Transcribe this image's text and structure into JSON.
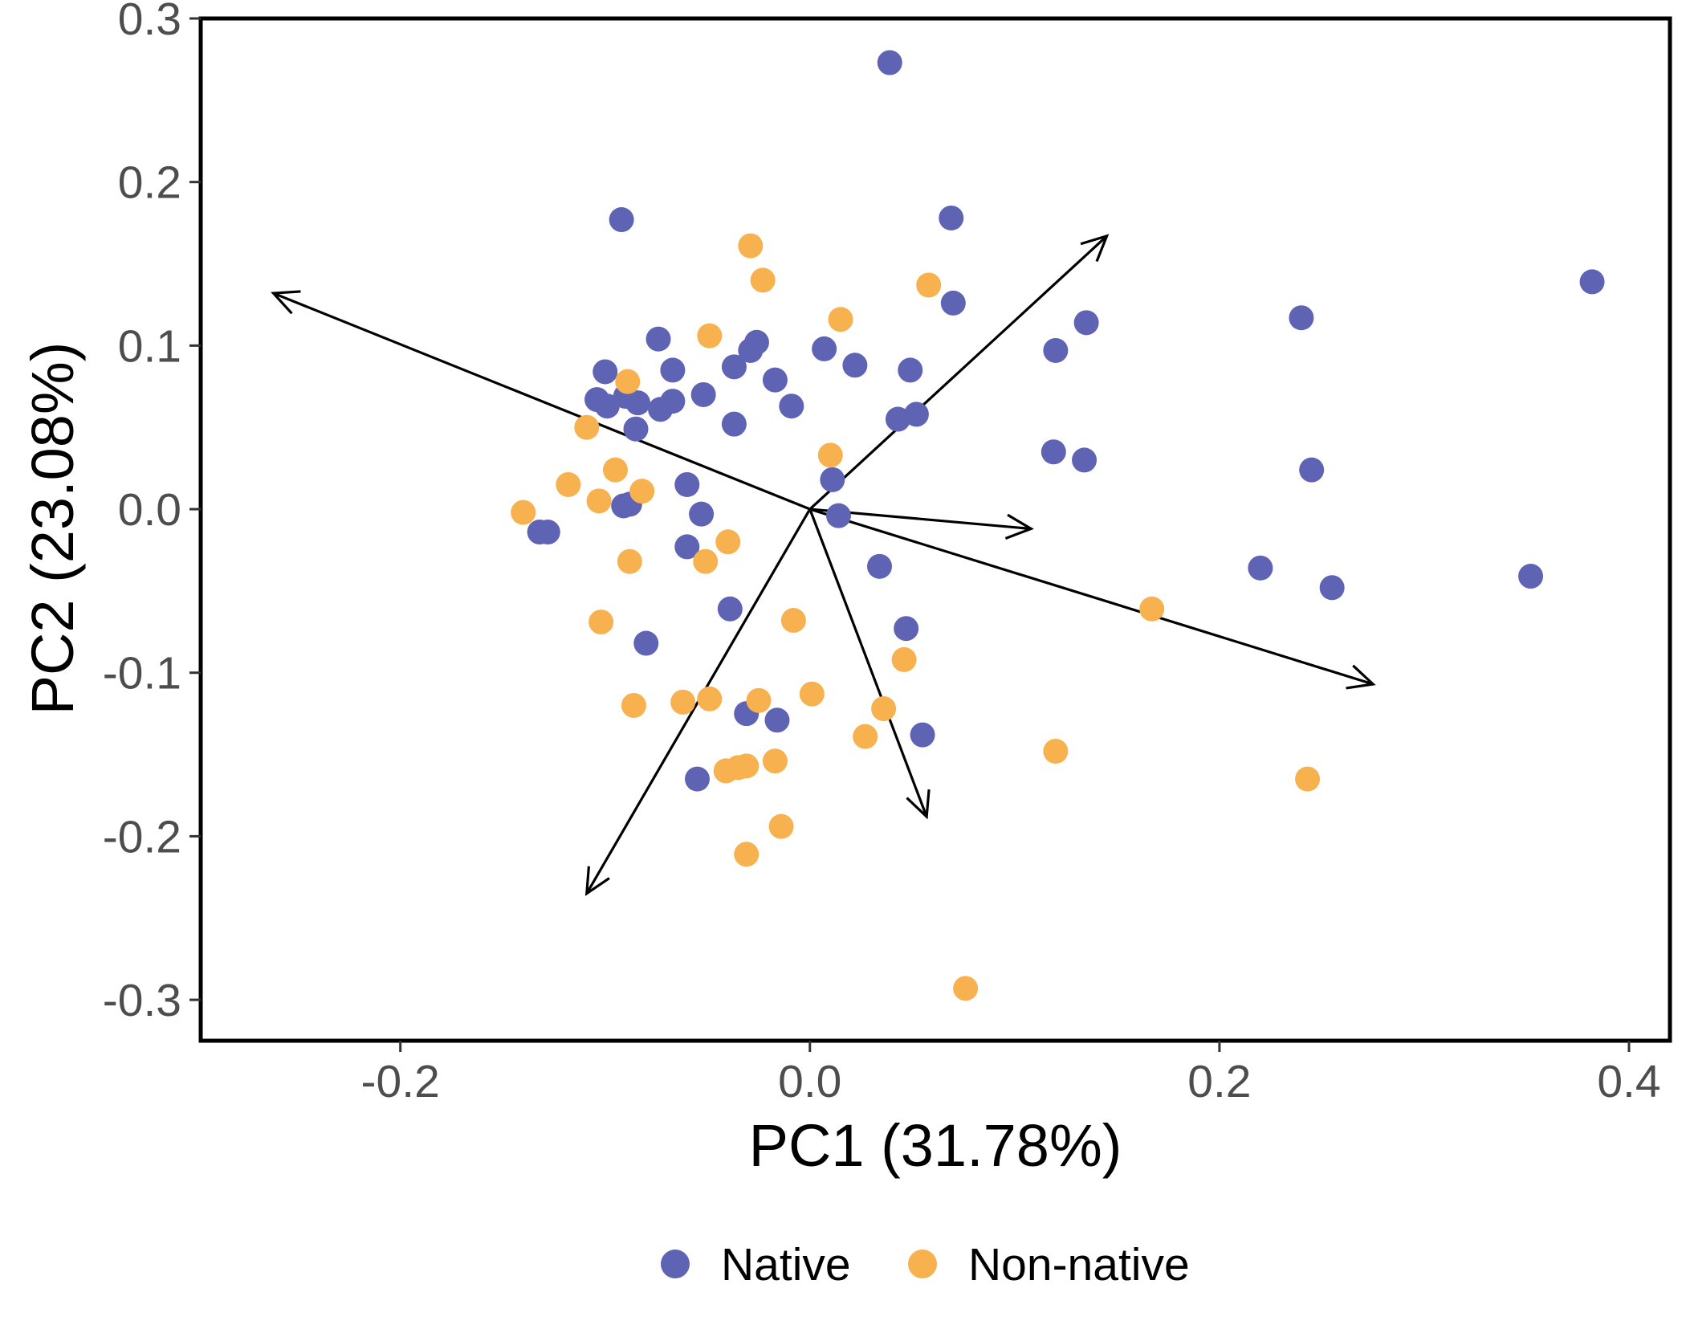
{
  "chart_data": {
    "type": "scatter",
    "title": "",
    "xlabel": "PC1 (31.78%)",
    "ylabel": "PC2 (23.08%)",
    "xlim": [
      -0.2975,
      0.42
    ],
    "ylim": [
      -0.325,
      0.3
    ],
    "x_ticks": [
      -0.2,
      0.0,
      0.2,
      0.4
    ],
    "x_tick_labels": [
      "-0.2",
      "0.0",
      "0.2",
      "0.4"
    ],
    "y_ticks": [
      -0.3,
      -0.2,
      -0.1,
      0.0,
      0.1,
      0.2,
      0.3
    ],
    "y_tick_labels": [
      "-0.3",
      "-0.2",
      "-0.1",
      "0.0",
      "0.1",
      "0.2",
      "0.3"
    ],
    "grid": false,
    "legend_position": "bottom",
    "series": [
      {
        "name": "Native",
        "color": "#5e63b4",
        "points": [
          [
            0.039,
            0.273
          ],
          [
            -0.092,
            0.177
          ],
          [
            0.069,
            0.178
          ],
          [
            0.382,
            0.139
          ],
          [
            0.07,
            0.126
          ],
          [
            0.24,
            0.117
          ],
          [
            0.135,
            0.114
          ],
          [
            -0.074,
            0.104
          ],
          [
            -0.026,
            0.102
          ],
          [
            -0.029,
            0.097
          ],
          [
            0.007,
            0.098
          ],
          [
            0.12,
            0.097
          ],
          [
            -0.1,
            0.084
          ],
          [
            -0.067,
            0.085
          ],
          [
            0.022,
            0.088
          ],
          [
            0.049,
            0.085
          ],
          [
            -0.037,
            0.087
          ],
          [
            -0.017,
            0.079
          ],
          [
            -0.09,
            0.069
          ],
          [
            -0.104,
            0.067
          ],
          [
            -0.099,
            0.063
          ],
          [
            -0.084,
            0.065
          ],
          [
            -0.067,
            0.066
          ],
          [
            -0.073,
            0.061
          ],
          [
            -0.052,
            0.07
          ],
          [
            -0.009,
            0.063
          ],
          [
            0.043,
            0.055
          ],
          [
            0.052,
            0.058
          ],
          [
            -0.085,
            0.049
          ],
          [
            -0.037,
            0.052
          ],
          [
            0.119,
            0.035
          ],
          [
            0.134,
            0.03
          ],
          [
            0.245,
            0.024
          ],
          [
            0.011,
            0.018
          ],
          [
            -0.06,
            0.015
          ],
          [
            -0.091,
            0.002
          ],
          [
            -0.088,
            0.003
          ],
          [
            -0.053,
            -0.003
          ],
          [
            0.014,
            -0.004
          ],
          [
            -0.132,
            -0.014
          ],
          [
            -0.128,
            -0.014
          ],
          [
            -0.06,
            -0.023
          ],
          [
            0.034,
            -0.035
          ],
          [
            0.22,
            -0.036
          ],
          [
            0.255,
            -0.048
          ],
          [
            0.352,
            -0.041
          ],
          [
            -0.039,
            -0.061
          ],
          [
            0.047,
            -0.073
          ],
          [
            -0.08,
            -0.082
          ],
          [
            -0.031,
            -0.125
          ],
          [
            -0.016,
            -0.129
          ],
          [
            0.055,
            -0.138
          ],
          [
            -0.055,
            -0.165
          ]
        ]
      },
      {
        "name": "Non-native",
        "color": "#f7b14f",
        "points": [
          [
            -0.029,
            0.161
          ],
          [
            -0.023,
            0.14
          ],
          [
            0.058,
            0.137
          ],
          [
            0.015,
            0.116
          ],
          [
            -0.049,
            0.106
          ],
          [
            -0.089,
            0.078
          ],
          [
            -0.109,
            0.05
          ],
          [
            0.01,
            0.033
          ],
          [
            -0.095,
            0.024
          ],
          [
            -0.118,
            0.015
          ],
          [
            -0.082,
            0.011
          ],
          [
            -0.103,
            0.005
          ],
          [
            -0.14,
            -0.002
          ],
          [
            -0.04,
            -0.02
          ],
          [
            -0.051,
            -0.032
          ],
          [
            -0.088,
            -0.032
          ],
          [
            0.167,
            -0.061
          ],
          [
            -0.008,
            -0.068
          ],
          [
            -0.102,
            -0.069
          ],
          [
            0.046,
            -0.092
          ],
          [
            -0.062,
            -0.118
          ],
          [
            -0.049,
            -0.116
          ],
          [
            -0.025,
            -0.117
          ],
          [
            0.001,
            -0.113
          ],
          [
            -0.086,
            -0.12
          ],
          [
            0.036,
            -0.122
          ],
          [
            0.027,
            -0.139
          ],
          [
            0.12,
            -0.148
          ],
          [
            0.243,
            -0.165
          ],
          [
            -0.041,
            -0.16
          ],
          [
            -0.035,
            -0.158
          ],
          [
            -0.031,
            -0.157
          ],
          [
            -0.017,
            -0.154
          ],
          [
            -0.014,
            -0.194
          ],
          [
            -0.031,
            -0.211
          ],
          [
            0.076,
            -0.293
          ]
        ]
      }
    ],
    "loadings": [
      [
        -0.262,
        0.132
      ],
      [
        0.145,
        0.167
      ],
      [
        0.108,
        -0.012
      ],
      [
        0.275,
        -0.107
      ],
      [
        0.057,
        -0.188
      ],
      [
        -0.109,
        -0.235
      ]
    ]
  }
}
